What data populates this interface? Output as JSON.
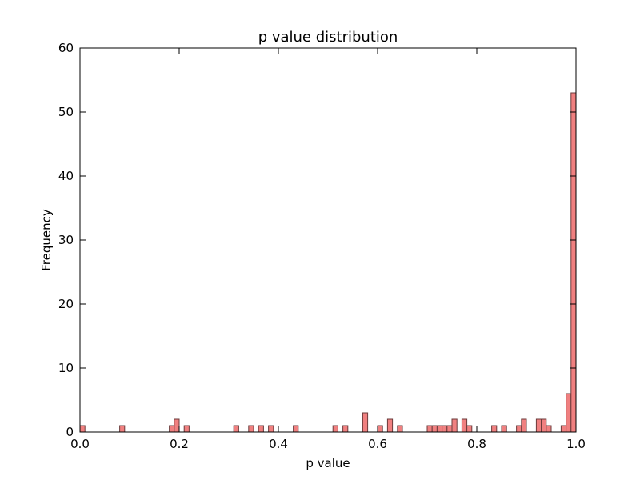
{
  "chart_data": {
    "type": "bar",
    "title": "p value distribution",
    "xlabel": "p value",
    "ylabel": "Frequency",
    "xlim": [
      0.0,
      1.0
    ],
    "ylim": [
      0,
      60
    ],
    "bin_width": 0.01,
    "bar_color": "#f08080",
    "x_ticks": [
      {
        "value": 0.0,
        "label": "0.0"
      },
      {
        "value": 0.2,
        "label": "0.2"
      },
      {
        "value": 0.4,
        "label": "0.4"
      },
      {
        "value": 0.6,
        "label": "0.6"
      },
      {
        "value": 0.8,
        "label": "0.8"
      },
      {
        "value": 1.0,
        "label": "1.0"
      }
    ],
    "y_ticks": [
      {
        "value": 0,
        "label": "0"
      },
      {
        "value": 10,
        "label": "10"
      },
      {
        "value": 20,
        "label": "20"
      },
      {
        "value": 30,
        "label": "30"
      },
      {
        "value": 40,
        "label": "40"
      },
      {
        "value": 50,
        "label": "50"
      },
      {
        "value": 60,
        "label": "60"
      }
    ],
    "bins": [
      {
        "x": 0.0,
        "count": 1
      },
      {
        "x": 0.08,
        "count": 1
      },
      {
        "x": 0.18,
        "count": 1
      },
      {
        "x": 0.19,
        "count": 2
      },
      {
        "x": 0.21,
        "count": 1
      },
      {
        "x": 0.31,
        "count": 1
      },
      {
        "x": 0.34,
        "count": 1
      },
      {
        "x": 0.36,
        "count": 1
      },
      {
        "x": 0.38,
        "count": 1
      },
      {
        "x": 0.43,
        "count": 1
      },
      {
        "x": 0.51,
        "count": 1
      },
      {
        "x": 0.53,
        "count": 1
      },
      {
        "x": 0.57,
        "count": 3
      },
      {
        "x": 0.6,
        "count": 1
      },
      {
        "x": 0.62,
        "count": 2
      },
      {
        "x": 0.64,
        "count": 1
      },
      {
        "x": 0.7,
        "count": 1
      },
      {
        "x": 0.71,
        "count": 1
      },
      {
        "x": 0.72,
        "count": 1
      },
      {
        "x": 0.73,
        "count": 1
      },
      {
        "x": 0.74,
        "count": 1
      },
      {
        "x": 0.75,
        "count": 2
      },
      {
        "x": 0.77,
        "count": 2
      },
      {
        "x": 0.78,
        "count": 1
      },
      {
        "x": 0.83,
        "count": 1
      },
      {
        "x": 0.85,
        "count": 1
      },
      {
        "x": 0.88,
        "count": 1
      },
      {
        "x": 0.89,
        "count": 2
      },
      {
        "x": 0.92,
        "count": 2
      },
      {
        "x": 0.93,
        "count": 2
      },
      {
        "x": 0.94,
        "count": 1
      },
      {
        "x": 0.97,
        "count": 1
      },
      {
        "x": 0.98,
        "count": 6
      },
      {
        "x": 0.99,
        "count": 53
      }
    ]
  }
}
